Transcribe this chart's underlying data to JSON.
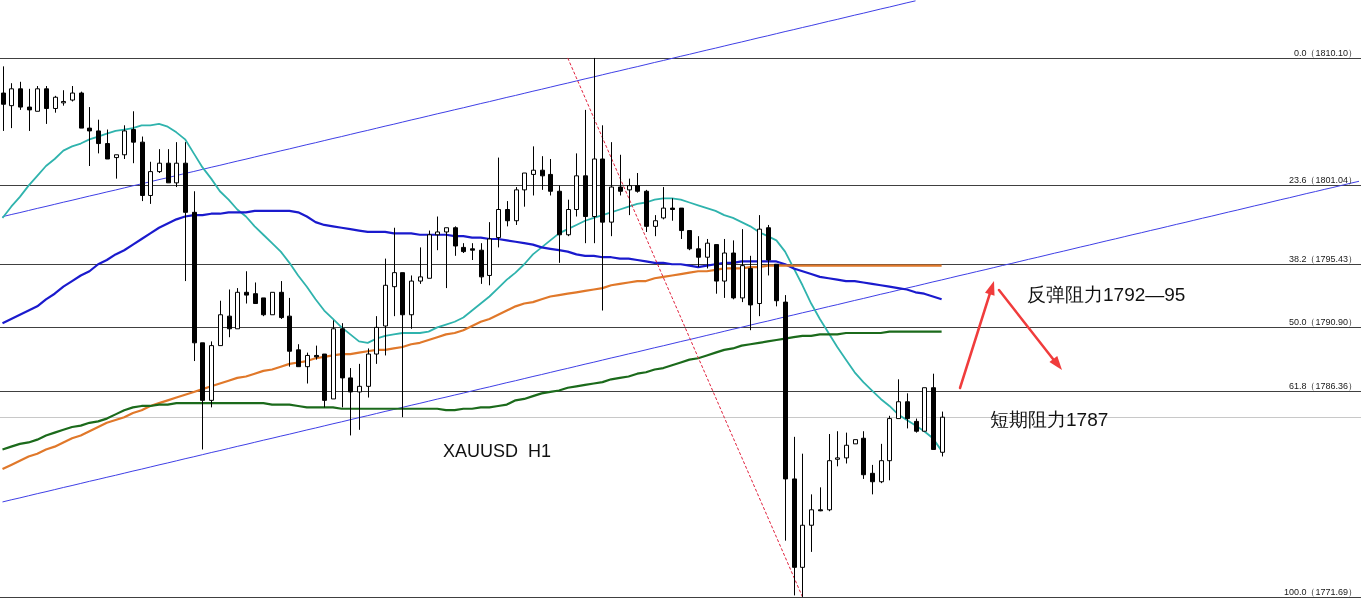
{
  "chart_data": {
    "type": "candlestick",
    "color": "#000000",
    "ylim": [
      1771.33,
      1814.23
    ],
    "tick_labels": "y",
    "yticks": [
      {
        "value": 1810.1,
        "label": "（1810.10）"
      },
      {
        "value": 1801.04,
        "label": "（1801.04）"
      },
      {
        "value": 1795.43,
        "label": "（1795.43）"
      },
      {
        "value": 1790.9,
        "label": "（1790.90）"
      },
      {
        "value": 1786.36,
        "label": "（1786.36）"
      },
      {
        "value": 1771.69,
        "label": "（1771.69）"
      }
    ],
    "categories": [
      null,
      null,
      null,
      null,
      null,
      null,
      null,
      null,
      null,
      null,
      null,
      null,
      null,
      null,
      null,
      null,
      null,
      null,
      null,
      null,
      null,
      null,
      null,
      null,
      null,
      null,
      null,
      null,
      null,
      null,
      null,
      null,
      null,
      null,
      null,
      null,
      null,
      null,
      null,
      null,
      null,
      null,
      null,
      null,
      null,
      null,
      null,
      null,
      null,
      null,
      null,
      null,
      null,
      null,
      null,
      null,
      null,
      null,
      null,
      null,
      null,
      null,
      null,
      null,
      null,
      null,
      null,
      null,
      null,
      null,
      null,
      null,
      null,
      null,
      null,
      null,
      null,
      null,
      null,
      null,
      null,
      null,
      null,
      null,
      null,
      null,
      null,
      null,
      null,
      null,
      null,
      null,
      null,
      null,
      null,
      null,
      null,
      null,
      null,
      null,
      null,
      null,
      null,
      null,
      null,
      null,
      null,
      null,
      null,
      null,
      null,
      null,
      null,
      null,
      null,
      null,
      null,
      null,
      null,
      null,
      null,
      null,
      null,
      null,
      null,
      null,
      null,
      null,
      null,
      null,
      null,
      null,
      null,
      null,
      null,
      null,
      null,
      null,
      null,
      null,
      null,
      null,
      null,
      null,
      null,
      null,
      null,
      null,
      null,
      null,
      null,
      null,
      null,
      null,
      null,
      null,
      null
    ],
    "ohlc": [
      [
        1807.6,
        1809.5,
        1804.9,
        1806.8
      ],
      [
        1806.7,
        1808.3,
        1805.1,
        1807.9
      ],
      [
        1807.9,
        1808.4,
        1806.4,
        1806.6
      ],
      [
        1806.6,
        1807.9,
        1804.9,
        1806.4
      ],
      [
        1806.3,
        1808.1,
        1806.3,
        1807.9
      ],
      [
        1807.9,
        1808.1,
        1805.4,
        1806.5
      ],
      [
        1806.5,
        1807.4,
        1806.2,
        1807.3
      ],
      [
        1806.9,
        1807.8,
        1806.7,
        1807.0
      ],
      [
        1807.1,
        1808.1,
        1807.0,
        1807.6
      ],
      [
        1807.6,
        1807.7,
        1805.1,
        1805.1
      ],
      [
        1805.1,
        1806.6,
        1802.4,
        1804.9
      ],
      [
        1804.9,
        1805.7,
        1803.3,
        1804.0
      ],
      [
        1804.0,
        1805.0,
        1802.9,
        1802.9
      ],
      [
        1803.0,
        1803.2,
        1801.5,
        1803.2
      ],
      [
        1803.2,
        1805.3,
        1802.9,
        1804.9
      ],
      [
        1805.0,
        1806.3,
        1802.6,
        1804.1
      ],
      [
        1804.1,
        1804.5,
        1799.9,
        1800.3
      ],
      [
        1800.3,
        1802.7,
        1799.7,
        1802.0
      ],
      [
        1802.0,
        1803.6,
        1801.9,
        1802.6
      ],
      [
        1802.6,
        1803.6,
        1801.2,
        1801.2
      ],
      [
        1801.2,
        1804.1,
        1800.9,
        1802.6
      ],
      [
        1802.6,
        1804.1,
        1794.2,
        1799.1
      ],
      [
        1799.1,
        1800.6,
        1788.5,
        1789.8
      ],
      [
        1789.8,
        1789.8,
        1782.2,
        1785.7
      ],
      [
        1785.7,
        1789.9,
        1785.2,
        1789.6
      ],
      [
        1789.6,
        1792.8,
        1789.6,
        1791.8
      ],
      [
        1791.7,
        1793.6,
        1790.2,
        1790.8
      ],
      [
        1790.8,
        1793.7,
        1790.8,
        1793.4
      ],
      [
        1793.4,
        1794.9,
        1792.6,
        1793.2
      ],
      [
        1793.3,
        1794.1,
        1792.6,
        1792.6
      ],
      [
        1793.0,
        1793.0,
        1791.7,
        1791.8
      ],
      [
        1791.8,
        1793.4,
        1791.8,
        1793.4
      ],
      [
        1793.4,
        1794.2,
        1791.5,
        1791.6
      ],
      [
        1791.7,
        1793.0,
        1788.1,
        1789.2
      ],
      [
        1789.3,
        1789.7,
        1788.1,
        1788.1
      ],
      [
        1788.1,
        1789.1,
        1786.9,
        1788.9
      ],
      [
        1788.9,
        1789.6,
        1788.6,
        1788.8
      ],
      [
        1789.0,
        1789.0,
        1785.2,
        1785.7
      ],
      [
        1785.8,
        1791.4,
        1785.8,
        1790.8
      ],
      [
        1790.8,
        1791.2,
        1785.2,
        1787.3
      ],
      [
        1787.3,
        1788.0,
        1783.2,
        1786.3
      ],
      [
        1786.3,
        1788.3,
        1783.6,
        1786.7
      ],
      [
        1786.7,
        1789.4,
        1785.9,
        1789.0
      ],
      [
        1789.0,
        1791.7,
        1788.3,
        1790.9
      ],
      [
        1791.0,
        1795.8,
        1788.9,
        1793.9
      ],
      [
        1793.8,
        1798.0,
        1791.7,
        1794.8
      ],
      [
        1794.8,
        1794.8,
        1784.5,
        1791.8
      ],
      [
        1791.8,
        1794.6,
        1790.8,
        1794.2
      ],
      [
        1794.2,
        1796.6,
        1794.0,
        1794.5
      ],
      [
        1794.4,
        1797.8,
        1794.4,
        1797.5
      ],
      [
        1797.5,
        1798.8,
        1796.4,
        1797.7
      ],
      [
        1797.7,
        1798.0,
        1793.7,
        1798.0
      ],
      [
        1798.0,
        1798.1,
        1796.0,
        1796.7
      ],
      [
        1796.6,
        1796.9,
        1796.2,
        1796.3
      ],
      [
        1796.5,
        1796.9,
        1795.7,
        1796.4
      ],
      [
        1796.4,
        1796.9,
        1794.0,
        1794.5
      ],
      [
        1794.6,
        1798.4,
        1793.9,
        1797.2
      ],
      [
        1797.3,
        1803.0,
        1796.6,
        1799.3
      ],
      [
        1799.3,
        1799.9,
        1798.1,
        1798.5
      ],
      [
        1798.5,
        1800.9,
        1798.2,
        1800.7
      ],
      [
        1800.7,
        1801.9,
        1799.5,
        1801.9
      ],
      [
        1801.8,
        1803.8,
        1800.3,
        1802.1
      ],
      [
        1802.1,
        1803.1,
        1800.7,
        1801.7
      ],
      [
        1801.8,
        1802.9,
        1800.3,
        1800.6
      ],
      [
        1800.6,
        1801.0,
        1795.5,
        1797.5
      ],
      [
        1797.5,
        1800.0,
        1797.4,
        1799.3
      ],
      [
        1799.3,
        1803.3,
        1798.8,
        1801.7
      ],
      [
        1801.7,
        1806.4,
        1796.9,
        1798.8
      ],
      [
        1798.8,
        1810.1,
        1796.9,
        1802.9
      ],
      [
        1802.9,
        1805.3,
        1792.1,
        1798.4
      ],
      [
        1798.4,
        1804.1,
        1797.4,
        1800.9
      ],
      [
        1800.9,
        1803.2,
        1800.3,
        1800.6
      ],
      [
        1800.7,
        1801.5,
        1798.9,
        1801.0
      ],
      [
        1801.0,
        1801.9,
        1800.5,
        1800.6
      ],
      [
        1800.6,
        1800.7,
        1797.7,
        1798.1
      ],
      [
        1798.1,
        1798.9,
        1797.4,
        1798.5
      ],
      [
        1798.7,
        1800.9,
        1798.6,
        1799.4
      ],
      [
        1799.4,
        1800.1,
        1798.5,
        1799.3
      ],
      [
        1799.4,
        1799.4,
        1797.2,
        1797.8
      ],
      [
        1797.8,
        1797.8,
        1796.4,
        1796.5
      ],
      [
        1796.5,
        1797.4,
        1795.2,
        1795.9
      ],
      [
        1795.9,
        1797.2,
        1795.1,
        1796.9
      ],
      [
        1796.8,
        1796.8,
        1793.3,
        1794.2
      ],
      [
        1794.2,
        1797.2,
        1793.0,
        1796.2
      ],
      [
        1796.2,
        1797.1,
        1792.9,
        1793.0
      ],
      [
        1793.0,
        1797.9,
        1792.7,
        1795.3
      ],
      [
        1795.1,
        1796.0,
        1790.7,
        1792.5
      ],
      [
        1792.6,
        1798.9,
        1791.7,
        1797.9
      ],
      [
        1798.0,
        1798.2,
        1794.6,
        1795.7
      ],
      [
        1795.4,
        1795.4,
        1792.4,
        1792.8
      ],
      [
        1792.7,
        1793.2,
        1775.7,
        1780.1
      ],
      [
        1780.1,
        1783.1,
        1771.8,
        1773.8
      ],
      [
        1773.8,
        1781.9,
        1771.69,
        1776.8
      ],
      [
        1776.8,
        1779.0,
        1774.9,
        1777.9
      ],
      [
        1777.9,
        1779.5,
        1777.8,
        1777.9
      ],
      [
        1777.9,
        1783.3,
        1777.8,
        1781.4
      ],
      [
        1781.5,
        1783.5,
        1781.0,
        1781.6
      ],
      [
        1781.6,
        1783.4,
        1781.2,
        1782.5
      ],
      [
        1782.6,
        1782.9,
        1782.6,
        1782.9
      ],
      [
        1783.0,
        1783.5,
        1780.1,
        1780.4
      ],
      [
        1780.5,
        1781.1,
        1779.0,
        1779.9
      ],
      [
        1779.9,
        1782.6,
        1779.8,
        1781.4
      ],
      [
        1781.4,
        1784.6,
        1780.0,
        1784.4
      ],
      [
        1784.4,
        1787.2,
        1784.4,
        1785.6
      ],
      [
        1785.6,
        1786.2,
        1783.7,
        1784.4
      ],
      [
        1784.2,
        1784.4,
        1783.4,
        1783.5
      ],
      [
        1783.5,
        1786.6,
        1783.5,
        1786.6
      ],
      [
        1786.6,
        1787.6,
        1782.2,
        1782.2
      ],
      [
        1782.0,
        1784.9,
        1781.7,
        1784.5
      ],
      null,
      null,
      null,
      null,
      null,
      null,
      null,
      null,
      null,
      null,
      null,
      null,
      null,
      null,
      null,
      null,
      null,
      null,
      null,
      null,
      null,
      null,
      null,
      null,
      null,
      null,
      null,
      null,
      null,
      null,
      null,
      null,
      null,
      null,
      null,
      null,
      null,
      null,
      null,
      null,
      null,
      null,
      null,
      null,
      null,
      null,
      null,
      null
    ],
    "series": [
      {
        "type": "line",
        "color": "#3f3fe6",
        "values": [
          1798.79,
          1798.94,
          1799.08,
          1799.23,
          1799.38,
          1799.52,
          1799.67,
          1799.82,
          1799.96,
          1800.11,
          1800.26,
          1800.4,
          1800.55,
          1800.69,
          1800.84,
          1800.99,
          1801.13,
          1801.28,
          1801.43,
          1801.57,
          1801.72,
          1801.87,
          1802.01,
          1802.16,
          1802.31,
          1802.45,
          1802.6,
          1802.75,
          1802.89,
          1803.04,
          1803.19,
          1803.33,
          1803.48,
          1803.62,
          1803.77,
          1803.92,
          1804.06,
          1804.21,
          1804.36,
          1804.5,
          1804.65,
          1804.8,
          1804.94,
          1805.09,
          1805.24,
          1805.38,
          1805.53,
          1805.68,
          1805.82,
          1805.97,
          1806.12,
          1806.26,
          1806.41,
          1806.55,
          1806.7,
          1806.85,
          1806.99,
          1807.14,
          1807.29,
          1807.43,
          1807.58,
          1807.73,
          1807.87,
          1808.02,
          1808.17,
          1808.31,
          1808.46,
          1808.61,
          1808.75,
          1808.9,
          1809.05,
          1809.19,
          1809.34,
          1809.48,
          1809.63,
          1809.78,
          1809.92,
          1810.07,
          1810.22,
          1810.36,
          1810.51,
          1810.66,
          1810.8,
          1810.95,
          1811.1,
          1811.24,
          1811.39,
          1811.54,
          1811.68,
          1811.83,
          1811.98,
          1812.12,
          1812.27,
          1812.41,
          1812.56,
          1812.71,
          1812.85,
          1813.0,
          1813.15,
          1813.29,
          1813.44,
          1813.59,
          1813.73,
          1813.88,
          1814.03,
          1814.17,
          null,
          null,
          null,
          null,
          null,
          null,
          null,
          null,
          null,
          null,
          null,
          null,
          null,
          null,
          null,
          null,
          null,
          null,
          null,
          null,
          null,
          null,
          null,
          null,
          null,
          null,
          null,
          null,
          null,
          null,
          null,
          null,
          null,
          null,
          null,
          null,
          null,
          null,
          null,
          null,
          null,
          null,
          null,
          null,
          null,
          null,
          null,
          null,
          null,
          null,
          null
        ]
      },
      {
        "type": "line",
        "color": "#3f3fe6",
        "values": [
          1778.46,
          1778.61,
          1778.75,
          1778.9,
          1779.05,
          1779.19,
          1779.34,
          1779.49,
          1779.63,
          1779.78,
          1779.93,
          1780.07,
          1780.22,
          1780.36,
          1780.51,
          1780.66,
          1780.8,
          1780.95,
          1781.1,
          1781.24,
          1781.39,
          1781.54,
          1781.68,
          1781.83,
          1781.98,
          1782.12,
          1782.27,
          1782.42,
          1782.56,
          1782.71,
          1782.86,
          1783.0,
          1783.15,
          1783.29,
          1783.44,
          1783.59,
          1783.73,
          1783.88,
          1784.03,
          1784.17,
          1784.32,
          1784.47,
          1784.61,
          1784.76,
          1784.91,
          1785.05,
          1785.2,
          1785.35,
          1785.49,
          1785.64,
          1785.79,
          1785.93,
          1786.08,
          1786.22,
          1786.37,
          1786.52,
          1786.66,
          1786.81,
          1786.96,
          1787.1,
          1787.25,
          1787.4,
          1787.54,
          1787.69,
          1787.84,
          1787.98,
          1788.13,
          1788.28,
          1788.42,
          1788.57,
          1788.72,
          1788.86,
          1789.01,
          1789.15,
          1789.3,
          1789.45,
          1789.59,
          1789.74,
          1789.89,
          1790.03,
          1790.18,
          1790.33,
          1790.47,
          1790.62,
          1790.77,
          1790.91,
          1791.06,
          1791.21,
          1791.35,
          1791.5,
          1791.65,
          1791.79,
          1791.94,
          1792.08,
          1792.23,
          1792.38,
          1792.52,
          1792.67,
          1792.82,
          1792.96,
          1793.11,
          1793.26,
          1793.4,
          1793.55,
          1793.7,
          1793.84,
          1793.99,
          1794.14,
          1794.28,
          1794.43,
          1794.58,
          1794.72,
          1794.87,
          1795.01,
          1795.16,
          1795.31,
          1795.45,
          1795.6,
          1795.75,
          1795.89,
          1796.04,
          1796.19,
          1796.33,
          1796.48,
          1796.63,
          1796.77,
          1796.92,
          1797.07,
          1797.21,
          1797.36,
          1797.51,
          1797.65,
          1797.8,
          1797.94,
          1798.09,
          1798.24,
          1798.38,
          1798.53,
          1798.68,
          1798.82,
          1798.97,
          1799.12,
          1799.26,
          1799.41,
          1799.56,
          1799.7,
          1799.85,
          1800.0,
          1800.14,
          1800.29,
          1800.44,
          1800.58,
          1800.73,
          1800.87,
          1801.02,
          1801.17,
          1801.31
        ]
      },
      {
        "type": "line",
        "color": "#2fb3ad",
        "values": [
          1798.7,
          1799.5,
          1800.2,
          1801.0,
          1801.7,
          1802.4,
          1802.9,
          1803.5,
          1803.8,
          1804.0,
          1804.3,
          1804.5,
          1804.7,
          1804.9,
          1805.0,
          1805.1,
          1805.3,
          1805.3,
          1805.4,
          1805.2,
          1804.8,
          1804.3,
          1803.3,
          1802.3,
          1801.5,
          1800.6,
          1800.0,
          1799.3,
          1798.8,
          1798.1,
          1797.5,
          1796.9,
          1796.3,
          1795.5,
          1794.6,
          1793.8,
          1792.9,
          1792.1,
          1791.5,
          1790.9,
          1790.4,
          1789.9,
          1789.8,
          1790.1,
          1790.3,
          1790.4,
          1790.5,
          1790.5,
          1790.5,
          1790.6,
          1790.9,
          1791.1,
          1791.3,
          1791.6,
          1792.1,
          1792.6,
          1793.1,
          1793.7,
          1794.3,
          1794.8,
          1795.4,
          1796.1,
          1796.6,
          1797.1,
          1797.6,
          1797.9,
          1798.2,
          1798.5,
          1798.7,
          1798.9,
          1799.1,
          1799.3,
          1799.5,
          1799.7,
          1799.8,
          1800.0,
          1800.1,
          1800.1,
          1800.0,
          1799.8,
          1799.6,
          1799.4,
          1799.2,
          1798.9,
          1798.7,
          1798.4,
          1798.1,
          1797.7,
          1797.4,
          1797.1,
          1796.3,
          1795.1,
          1793.9,
          1792.6,
          1791.5,
          1790.5,
          1789.5,
          1788.6,
          1787.7,
          1787.0,
          1786.4,
          1785.8,
          1785.3,
          1784.7,
          1784.3,
          1783.9,
          1783.5,
          1783.0,
          1782.1,
          null,
          null,
          null,
          null,
          null,
          null,
          null,
          null,
          null,
          null,
          null,
          null,
          null,
          null,
          null,
          null,
          null,
          null,
          null,
          null,
          null,
          null,
          null,
          null,
          null,
          null,
          null,
          null,
          null,
          null,
          null,
          null,
          null,
          null,
          null,
          null,
          null,
          null,
          null,
          null,
          null,
          null,
          null,
          null,
          null,
          null,
          null,
          null
        ]
      },
      {
        "type": "line",
        "color": "#1a1acd",
        "values": [
          1791.2,
          1791.5,
          1791.8,
          1792.1,
          1792.4,
          1792.9,
          1793.3,
          1793.8,
          1794.2,
          1794.6,
          1794.9,
          1795.4,
          1795.7,
          1796.1,
          1796.4,
          1796.8,
          1797.2,
          1797.6,
          1798.0,
          1798.3,
          1798.6,
          1798.8,
          1798.9,
          1798.9,
          1799.0,
          1799.0,
          1799.1,
          1799.1,
          1799.1,
          1799.2,
          1799.2,
          1799.2,
          1799.2,
          1799.2,
          1799.1,
          1798.8,
          1798.4,
          1798.2,
          1798.1,
          1798.0,
          1797.9,
          1797.8,
          1797.7,
          1797.7,
          1797.7,
          1797.6,
          1797.6,
          1797.6,
          1797.5,
          1797.5,
          1797.5,
          1797.5,
          1797.4,
          1797.4,
          1797.3,
          1797.3,
          1797.2,
          1797.2,
          1797.1,
          1797.0,
          1796.9,
          1796.8,
          1796.6,
          1796.5,
          1796.4,
          1796.3,
          1796.1,
          1796.0,
          1796.0,
          1795.9,
          1795.9,
          1795.8,
          1795.8,
          1795.7,
          1795.6,
          1795.5,
          1795.5,
          1795.4,
          1795.4,
          1795.3,
          1795.2,
          1795.3,
          1795.4,
          1795.5,
          1795.5,
          1795.6,
          1795.6,
          1795.6,
          1795.6,
          1795.6,
          1795.4,
          1795.1,
          1794.9,
          1794.7,
          1794.5,
          1794.4,
          1794.3,
          1794.2,
          1794.2,
          1794.1,
          1794.0,
          1793.9,
          1793.8,
          1793.7,
          1793.6,
          1793.4,
          1793.3,
          1793.1,
          1792.9,
          null,
          null,
          null,
          null,
          null,
          null,
          null,
          null,
          null,
          null,
          null,
          null,
          null,
          null,
          null,
          null,
          null,
          null,
          null,
          null,
          null,
          null,
          null,
          null,
          null,
          null,
          null,
          null,
          null,
          null,
          null,
          null,
          null,
          null,
          null,
          null,
          null,
          null,
          null,
          null,
          null,
          null,
          null,
          null,
          null,
          null,
          null,
          null
        ]
      },
      {
        "type": "line",
        "color": "#e0782a",
        "values": [
          1780.8,
          1781.1,
          1781.4,
          1781.7,
          1781.9,
          1782.2,
          1782.4,
          1782.7,
          1783.0,
          1783.2,
          1783.5,
          1783.8,
          1784.1,
          1784.3,
          1784.5,
          1784.8,
          1785.0,
          1785.3,
          1785.5,
          1785.7,
          1785.9,
          1786.1,
          1786.3,
          1786.5,
          1786.7,
          1786.9,
          1787.1,
          1787.3,
          1787.4,
          1787.6,
          1787.8,
          1787.9,
          1788.1,
          1788.3,
          1788.4,
          1788.5,
          1788.7,
          1788.8,
          1788.9,
          1789.0,
          1789.0,
          1789.1,
          1789.2,
          1789.3,
          1789.3,
          1789.4,
          1789.5,
          1789.7,
          1789.8,
          1790.0,
          1790.2,
          1790.4,
          1790.5,
          1790.7,
          1791.0,
          1791.3,
          1791.5,
          1791.8,
          1792.1,
          1792.4,
          1792.6,
          1792.7,
          1792.9,
          1793.1,
          1793.2,
          1793.3,
          1793.4,
          1793.5,
          1793.6,
          1793.7,
          1793.9,
          1794.0,
          1794.1,
          1794.2,
          1794.2,
          1794.4,
          1794.5,
          1794.6,
          1794.7,
          1794.8,
          1794.9,
          1794.9,
          1795.0,
          1795.1,
          1795.1,
          1795.1,
          1795.2,
          1795.2,
          1795.3,
          1795.3,
          1795.3,
          1795.3,
          1795.3,
          1795.3,
          1795.3,
          1795.3,
          1795.3,
          1795.3,
          1795.3,
          1795.3,
          1795.3,
          1795.3,
          1795.3,
          1795.3,
          1795.3,
          1795.3,
          1795.3,
          1795.3,
          1795.3,
          null,
          null,
          null,
          null,
          null,
          null,
          null,
          null,
          null,
          null,
          null,
          null,
          null,
          null,
          null,
          null,
          null,
          null,
          null,
          null,
          null,
          null,
          null,
          null,
          null,
          null,
          null,
          null,
          null,
          null,
          null,
          null,
          null,
          null,
          null,
          null,
          null,
          null,
          null,
          null,
          null,
          null,
          null,
          null,
          null,
          null,
          null,
          null
        ]
      },
      {
        "type": "line",
        "color": "#1b6a1b",
        "values": [
          1782.2,
          1782.4,
          1782.6,
          1782.7,
          1782.9,
          1783.2,
          1783.4,
          1783.6,
          1783.8,
          1783.9,
          1784.1,
          1784.2,
          1784.4,
          1784.7,
          1785.0,
          1785.2,
          1785.3,
          1785.3,
          1785.4,
          1785.4,
          1785.5,
          1785.5,
          1785.5,
          1785.5,
          1785.5,
          1785.5,
          1785.5,
          1785.5,
          1785.5,
          1785.5,
          1785.5,
          1785.4,
          1785.4,
          1785.4,
          1785.3,
          1785.2,
          1785.2,
          1785.2,
          1785.2,
          1785.1,
          1785.1,
          1785.1,
          1785.1,
          1785.1,
          1785.1,
          1785.1,
          1785.1,
          1785.1,
          1785.1,
          1785.1,
          1785.1,
          1785.0,
          1785.0,
          1785.1,
          1785.1,
          1785.2,
          1785.2,
          1785.3,
          1785.4,
          1785.7,
          1785.8,
          1786.0,
          1786.2,
          1786.3,
          1786.4,
          1786.6,
          1786.7,
          1786.8,
          1786.9,
          1787.0,
          1787.2,
          1787.3,
          1787.4,
          1787.6,
          1787.7,
          1787.9,
          1788.0,
          1788.2,
          1788.4,
          1788.6,
          1788.7,
          1788.9,
          1789.1,
          1789.3,
          1789.4,
          1789.6,
          1789.7,
          1789.8,
          1789.9,
          1790.0,
          1790.1,
          1790.2,
          1790.3,
          1790.3,
          1790.4,
          1790.4,
          1790.4,
          1790.5,
          1790.5,
          1790.5,
          1790.5,
          1790.5,
          1790.6,
          1790.6,
          1790.6,
          1790.6,
          1790.6,
          1790.6,
          1790.6,
          null,
          null,
          null,
          null,
          null,
          null,
          null,
          null,
          null,
          null,
          null,
          null,
          null,
          null,
          null,
          null,
          null,
          null,
          null,
          null,
          null,
          null,
          null,
          null,
          null,
          null,
          null,
          null,
          null,
          null,
          null,
          null,
          null,
          null,
          null,
          null,
          null,
          null,
          null,
          null,
          null,
          null,
          null,
          null,
          null,
          null,
          null,
          null
        ]
      },
      {
        "type": "line",
        "color": "#e0203c",
        "line_style": "dashed",
        "values": [
          null,
          null,
          null,
          null,
          null,
          null,
          null,
          null,
          null,
          null,
          null,
          null,
          null,
          null,
          null,
          null,
          null,
          null,
          null,
          null,
          null,
          null,
          null,
          null,
          null,
          null,
          null,
          null,
          null,
          null,
          null,
          null,
          null,
          null,
          null,
          null,
          null,
          null,
          null,
          null,
          null,
          null,
          null,
          null,
          null,
          null,
          null,
          null,
          null,
          null,
          null,
          null,
          null,
          null,
          null,
          null,
          null,
          null,
          null,
          null,
          null,
          null,
          null,
          null,
          null,
          1810.1,
          1808.68,
          1807.26,
          1805.83,
          1804.41,
          1802.99,
          1801.56,
          1800.14,
          1798.72,
          1797.3,
          1795.87,
          1794.45,
          1793.03,
          1791.61,
          1790.18,
          1788.76,
          1787.34,
          1785.92,
          1784.49,
          1783.07,
          1781.65,
          1780.23,
          1778.8,
          1777.38,
          1775.96,
          1774.54,
          1773.11,
          1771.69,
          null,
          null,
          null,
          null,
          null,
          null,
          null,
          null,
          null,
          null,
          null,
          null,
          null,
          null,
          null,
          null,
          null,
          null,
          null,
          null,
          null,
          null,
          null,
          null,
          null,
          null,
          null,
          null,
          null,
          null,
          null,
          null,
          null,
          null,
          null,
          null,
          null,
          null,
          null,
          null,
          null,
          null,
          null,
          null,
          null,
          null,
          null,
          null,
          null,
          null,
          null,
          null,
          null,
          null,
          null,
          null,
          null,
          null,
          null,
          null,
          null,
          null,
          null,
          null
        ]
      }
    ],
    "ref_lines": [
      {
        "axis": "y",
        "value": 1810.1,
        "color": "#404040"
      },
      {
        "axis": "y",
        "value": 1801.04,
        "color": "#404040"
      },
      {
        "axis": "y",
        "value": 1795.43,
        "color": "#404040"
      },
      {
        "axis": "y",
        "value": 1790.9,
        "color": "#404040"
      },
      {
        "axis": "y",
        "value": 1786.36,
        "color": "#404040"
      },
      {
        "axis": "y",
        "value": 1771.69,
        "color": "#404040"
      },
      {
        "axis": "y",
        "value": 1784.5,
        "color": "#c8c8c8"
      }
    ],
    "annotations": [
      "XAUUSD  H1",
      "反弹阻力1792—95",
      "短期阻力1787",
      {
        "text": "0.0",
        "y": 1810.1
      },
      {
        "text": "23.6",
        "y": 1801.04
      },
      {
        "text": "38.2",
        "y": 1795.43
      },
      {
        "text": "50.0",
        "y": 1790.9
      },
      {
        "text": "61.8",
        "y": 1786.36
      },
      {
        "text": "100.0",
        "y": 1771.69
      }
    ]
  }
}
